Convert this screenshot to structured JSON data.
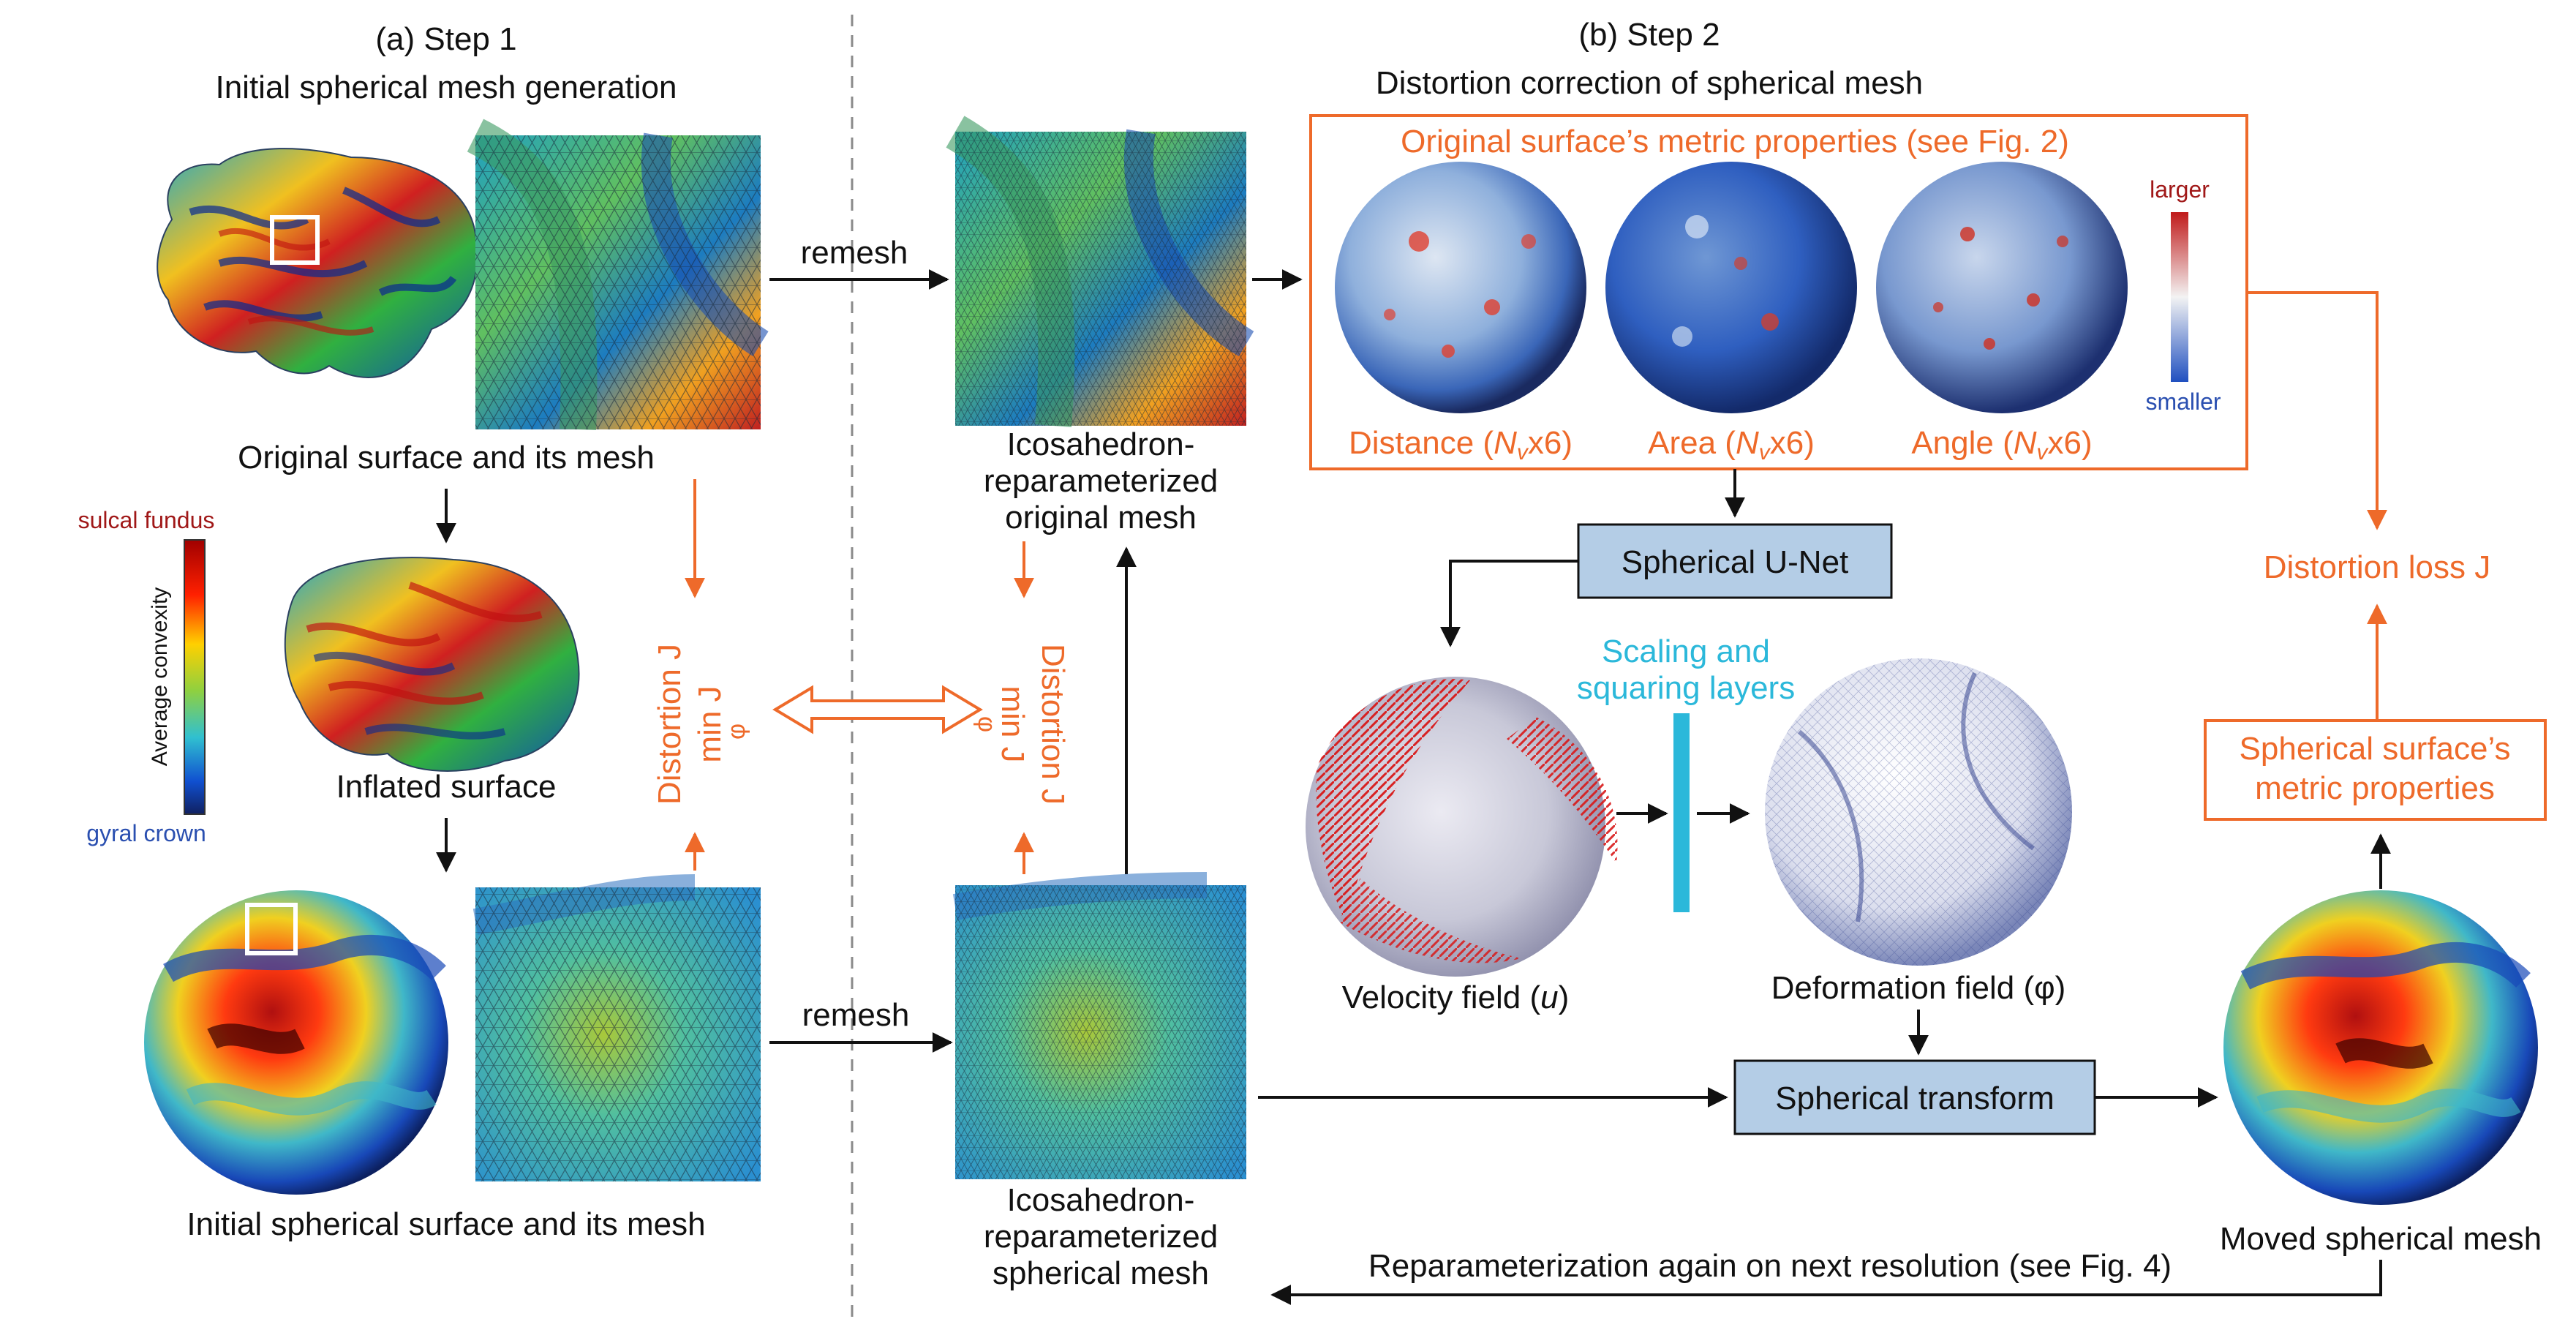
{
  "step1": {
    "title_line1": "(a) Step 1",
    "title_line2": "Initial spherical mesh generation",
    "original_caption": "Original surface and its mesh",
    "inflated_caption": "Inflated surface",
    "initial_caption": "Initial spherical surface and its mesh",
    "colorbar_top": "sulcal fundus",
    "colorbar_bottom": "gyral crown",
    "colorbar_axis": "Average convexity",
    "distortion_label": "Distortion J",
    "min_label": "min J",
    "min_sub": "φ"
  },
  "middle": {
    "remesh_top": "remesh",
    "remesh_bottom": "remesh",
    "top_caption_1": "Icosahedron-",
    "top_caption_2": "reparameterized",
    "top_caption_3": "original mesh",
    "bottom_caption_1": "Icosahedron-",
    "bottom_caption_2": "reparameterized",
    "bottom_caption_3": "spherical mesh"
  },
  "step2": {
    "title_line1": "(b) Step 2",
    "title_line2": "Distortion correction of spherical mesh",
    "metric_header": "Original surface’s metric properties (see Fig. 2)",
    "larger": "larger",
    "smaller": "smaller",
    "sphere_labels": [
      {
        "name": "Distance",
        "sym": "N",
        "sub": "v",
        "mult": "x6"
      },
      {
        "name": "Area",
        "sym": "N",
        "sub": "v",
        "mult": "x6"
      },
      {
        "name": "Angle",
        "sym": "N",
        "sub": "v",
        "mult": "x6"
      }
    ],
    "unet": "Spherical U-Net",
    "scaling_1": "Scaling and",
    "scaling_2": "squaring layers",
    "velocity": "Velocity field (",
    "velocity_sym": "u",
    "deformation": "Deformation field (φ)",
    "transform": "Spherical transform",
    "moved": "Moved spherical mesh",
    "loss": "Distortion loss J",
    "sph_metric_1": "Spherical surface’s",
    "sph_metric_2": "metric properties",
    "reparam": "Reparameterization again on next resolution (see Fig. 4)"
  },
  "colors": {
    "orange": "#ee6a2a",
    "box_fill": "#b4cde6",
    "cyan": "#2bb8da",
    "arrow": "#111111"
  }
}
